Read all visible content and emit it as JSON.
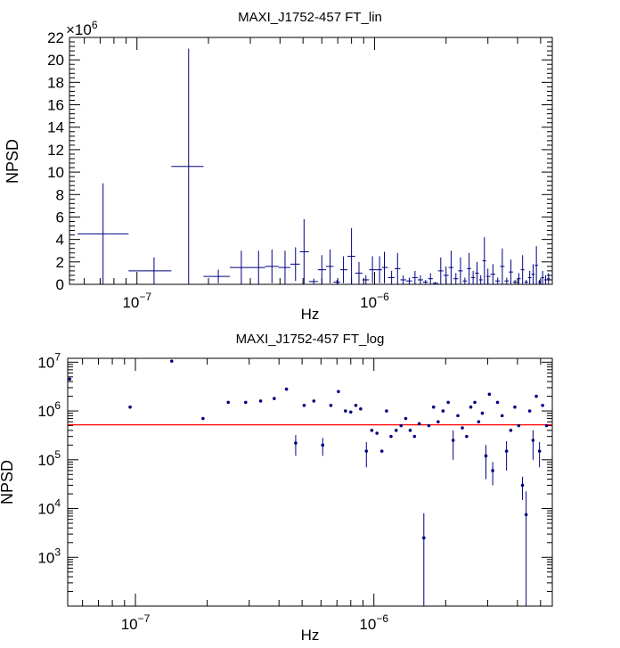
{
  "colors": {
    "series": "#000080",
    "fit_line": "#ff0000",
    "axis": "#000000",
    "background": "#ffffff"
  },
  "chart_data": [
    {
      "type": "scatter",
      "title": "MAXI_J1752-457 FT_lin",
      "xlabel": "Hz",
      "ylabel": "NPSD",
      "xscale": "log",
      "yscale": "linear",
      "y_multiplier_label": "×10",
      "y_multiplier_exp": "6",
      "xlim": [
        5.2e-08,
        5.6e-06
      ],
      "ylim": [
        0,
        22
      ],
      "yticks": [
        0,
        2,
        4,
        6,
        8,
        10,
        12,
        14,
        16,
        18,
        20,
        22
      ],
      "ytick_labels": [
        "0",
        "2",
        "4",
        "6",
        "8",
        "10",
        "12",
        "14",
        "16",
        "18",
        "20",
        "22"
      ],
      "xticks": [
        1e-07,
        1e-06
      ],
      "xtick_base": [
        "10",
        "10"
      ],
      "xtick_exp": [
        "−7",
        "−6"
      ],
      "grid": false,
      "legend": "none",
      "series": [
        {
          "x": [
            7.2e-08,
            1.18e-07,
            1.65e-07,
            2.2e-07,
            2.75e-07,
            3.25e-07,
            3.7e-07,
            4.2e-07,
            4.65e-07,
            5.05e-07,
            5.55e-07,
            6e-07,
            6.5e-07,
            6.95e-07,
            7.4e-07,
            8e-07,
            8.6e-07,
            9.2e-07,
            9.8e-07,
            1.05e-06,
            1.1e-06,
            1.18e-06,
            1.25e-06,
            1.32e-06,
            1.4e-06,
            1.48e-06,
            1.56e-06,
            1.64e-06,
            1.72e-06,
            1.8e-06,
            1.9e-06,
            2e-06,
            2.1e-06,
            2.2e-06,
            2.3e-06,
            2.4e-06,
            2.5e-06,
            2.6e-06,
            2.7e-06,
            2.8e-06,
            2.9e-06,
            3e-06,
            3.15e-06,
            3.3e-06,
            3.45e-06,
            3.6e-06,
            3.75e-06,
            3.9e-06,
            4.05e-06,
            4.2e-06,
            4.35e-06,
            4.5e-06,
            4.65e-06,
            4.8e-06,
            4.95e-06,
            5.1e-06,
            5.25e-06,
            5.4e-06
          ],
          "y": [
            4.5,
            1.2,
            10.5,
            0.7,
            1.5,
            1.5,
            1.6,
            1.5,
            1.8,
            2.9,
            0.25,
            1.3,
            1.6,
            0.2,
            1.3,
            2.5,
            1.0,
            0.4,
            1.3,
            1.3,
            1.5,
            0.6,
            1.4,
            0.4,
            0.3,
            0.6,
            0.4,
            0.2,
            0.5,
            0.1,
            1.2,
            0.8,
            1.5,
            0.5,
            1.2,
            0.3,
            1.4,
            0.6,
            1.0,
            0.4,
            2.1,
            0.7,
            0.9,
            0.3,
            1.6,
            0.3,
            1.1,
            0.2,
            0.5,
            1.3,
            0.2,
            0.6,
            0.9,
            1.7,
            0.2,
            0.6,
            0.4,
            0.5
          ],
          "y_err": [
            4.5,
            1.2,
            10.5,
            0.6,
            1.5,
            1.5,
            1.5,
            1.5,
            1.5,
            2.9,
            0.25,
            1.3,
            1.5,
            0.2,
            1.2,
            2.5,
            1.0,
            0.4,
            1.2,
            1.2,
            1.4,
            0.6,
            1.4,
            0.4,
            0.3,
            0.6,
            0.4,
            0.2,
            0.5,
            0.1,
            1.2,
            0.8,
            1.5,
            0.5,
            1.2,
            0.3,
            1.4,
            0.6,
            1.0,
            0.4,
            2.1,
            0.7,
            0.9,
            0.3,
            1.6,
            0.3,
            1.1,
            0.2,
            0.5,
            1.3,
            0.2,
            0.6,
            0.9,
            1.7,
            0.2,
            0.6,
            0.4,
            0.5
          ]
        }
      ]
    },
    {
      "type": "scatter",
      "title": "MAXI_J1752-457 FT_log",
      "xlabel": "Hz",
      "ylabel": "NPSD",
      "xscale": "log",
      "yscale": "log",
      "xlim": [
        5.2e-08,
        5.6e-06
      ],
      "ylim": [
        100,
        12000000
      ],
      "yticks": [
        1000,
        10000,
        100000,
        1000000,
        10000000
      ],
      "ytick_base": [
        "10",
        "10",
        "10",
        "10",
        "10"
      ],
      "ytick_exp": [
        "3",
        "4",
        "5",
        "6",
        "7"
      ],
      "xticks": [
        1e-07,
        1e-06
      ],
      "xtick_base": [
        "10",
        "10"
      ],
      "xtick_exp": [
        "−7",
        "−6"
      ],
      "grid": false,
      "legend": "none",
      "fit_line": {
        "y": 520000
      },
      "series": [
        {
          "x": [
            5.3e-08,
            9.5e-08,
            1.42e-07,
            1.92e-07,
            2.45e-07,
            2.9e-07,
            3.35e-07,
            3.82e-07,
            4.3e-07,
            4.7e-07,
            5.1e-07,
            5.6e-07,
            6.1e-07,
            6.6e-07,
            7.1e-07,
            7.6e-07,
            8e-07,
            8.4e-07,
            8.8e-07,
            9.3e-07,
            9.8e-07,
            1.03e-06,
            1.08e-06,
            1.13e-06,
            1.18e-06,
            1.24e-06,
            1.3e-06,
            1.36e-06,
            1.42e-06,
            1.48e-06,
            1.55e-06,
            1.62e-06,
            1.7e-06,
            1.78e-06,
            1.86e-06,
            1.95e-06,
            2.05e-06,
            2.15e-06,
            2.25e-06,
            2.35e-06,
            2.45e-06,
            2.55e-06,
            2.65e-06,
            2.75e-06,
            2.85e-06,
            2.95e-06,
            3.05e-06,
            3.15e-06,
            3.3e-06,
            3.45e-06,
            3.6e-06,
            3.75e-06,
            3.9e-06,
            4.05e-06,
            4.2e-06,
            4.35e-06,
            4.5e-06,
            4.65e-06,
            4.8e-06,
            4.95e-06,
            5.1e-06,
            5.3e-06
          ],
          "y": [
            4500000,
            1200000,
            10500000,
            700000,
            1500000,
            1500000,
            1600000,
            1800000,
            2800000,
            220000,
            1300000,
            1600000,
            200000,
            1300000,
            2500000,
            1000000,
            950000,
            1300000,
            1100000,
            150000,
            400000,
            350000,
            150000,
            1000000,
            300000,
            400000,
            500000,
            700000,
            400000,
            300000,
            550000,
            2500,
            500000,
            1200000,
            600000,
            1000000,
            1500000,
            250000,
            800000,
            450000,
            300000,
            1200000,
            1500000,
            600000,
            900000,
            120000,
            2200000,
            60000,
            1500000,
            800000,
            150000,
            400000,
            1200000,
            500000,
            30000,
            7500,
            1000000,
            250000,
            2000000,
            150000,
            1300000,
            500000
          ],
          "y_err_low": [
            0,
            0,
            0,
            0,
            0,
            0,
            0,
            0,
            0,
            100000,
            0,
            0,
            80000,
            0,
            0,
            0,
            0,
            0,
            0,
            80000,
            0,
            0,
            0,
            0,
            0,
            0,
            0,
            0,
            0,
            0,
            0,
            2490,
            0,
            0,
            0,
            0,
            0,
            150000,
            0,
            0,
            0,
            0,
            0,
            0,
            0,
            80000,
            0,
            30000,
            0,
            0,
            90000,
            0,
            0,
            0,
            15000,
            7490,
            0,
            150000,
            0,
            80000,
            0,
            0
          ],
          "y_err_high": [
            0,
            0,
            0,
            0,
            0,
            0,
            0,
            0,
            0,
            100000,
            0,
            0,
            80000,
            0,
            0,
            0,
            0,
            0,
            0,
            80000,
            0,
            0,
            0,
            0,
            0,
            0,
            0,
            0,
            0,
            0,
            0,
            5500,
            0,
            0,
            0,
            0,
            0,
            150000,
            0,
            0,
            0,
            0,
            0,
            0,
            0,
            80000,
            0,
            30000,
            0,
            0,
            90000,
            0,
            0,
            0,
            15000,
            15000,
            0,
            150000,
            0,
            80000,
            0,
            0
          ]
        }
      ]
    }
  ]
}
